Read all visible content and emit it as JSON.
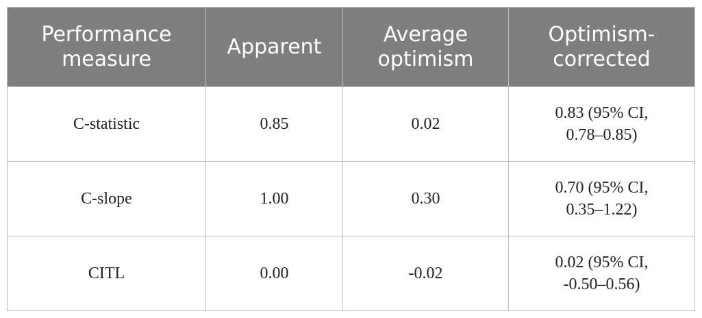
{
  "table": {
    "headers": [
      [
        "Performance",
        "measure"
      ],
      [
        "Apparent"
      ],
      [
        "Average",
        "optimism"
      ],
      [
        "Optimism-",
        "corrected"
      ]
    ],
    "rows": [
      {
        "measure": "C-statistic",
        "apparent": "0.85",
        "average_optimism": "0.02",
        "corrected": [
          "0.83 (95% CI,",
          "0.78–0.85)"
        ]
      },
      {
        "measure": "C-slope",
        "apparent": "1.00",
        "average_optimism": "0.30",
        "corrected": [
          "0.70 (95% CI,",
          "0.35–1.22)"
        ]
      },
      {
        "measure": "CITL",
        "apparent": "0.00",
        "average_optimism": "-0.02",
        "corrected": [
          "0.02 (95% CI,",
          "-0.50–0.56)"
        ]
      }
    ],
    "colors": {
      "header_bg": "#7f7f7f",
      "header_text": "#ffffff",
      "border": "#bdbdbd",
      "body_text": "#222222"
    }
  }
}
